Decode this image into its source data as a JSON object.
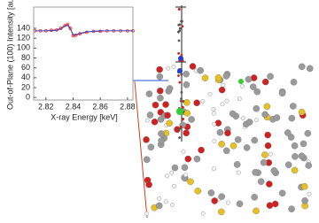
{
  "chart_data": {
    "type": "line",
    "x_label": "X-ray Energy [keV]",
    "y_label": "Out-of-Plane (100) Intensity [au]",
    "x": [
      2.812,
      2.816,
      2.82,
      2.824,
      2.828,
      2.831,
      2.834,
      2.836,
      2.838,
      2.84,
      2.842,
      2.845,
      2.85,
      2.855,
      2.86,
      2.865,
      2.87,
      2.875,
      2.88,
      2.884
    ],
    "series": [
      {
        "color": "#e0202a",
        "marker": true,
        "values": [
          135,
          135,
          135,
          136,
          137,
          140,
          146,
          148,
          140,
          125,
          126,
          129,
          132,
          134,
          134,
          135,
          135,
          135,
          135,
          135
        ]
      },
      {
        "color": "#2a4fd0",
        "marker": false,
        "values": [
          135,
          135,
          135,
          135,
          136,
          139,
          144,
          146,
          138,
          128,
          127,
          130,
          133,
          134,
          135,
          135,
          135,
          135,
          135,
          135
        ]
      }
    ],
    "xlim": [
      2.811,
      2.884
    ],
    "ylim": [
      -5,
      183
    ],
    "xticks": [
      2.82,
      2.84,
      2.86,
      2.88
    ],
    "yticks": [
      0,
      20,
      40,
      60,
      80,
      100,
      120,
      140
    ]
  }
}
